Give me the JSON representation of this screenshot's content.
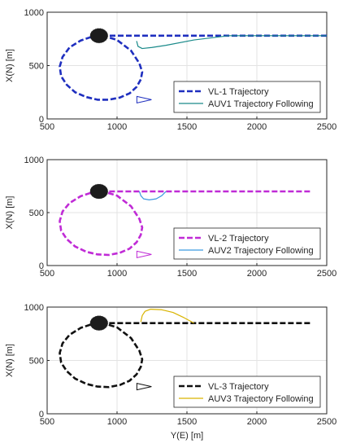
{
  "figure": {
    "panels": [
      {
        "id": "vl1",
        "xlabel": "",
        "ylabel": "X(N) [m]",
        "xlim": [
          500,
          2500
        ],
        "ylim": [
          0,
          1000
        ],
        "xticks": [
          "500",
          "1000",
          "1500",
          "2000",
          "2500"
        ],
        "yticks": [
          "0",
          "500",
          "1000"
        ],
        "leader_color": "#1f2fbf",
        "follower_color": "#1a8a8a",
        "legend": [
          "VL-1 Trajectory",
          "AUV1 Trajectory Following"
        ]
      },
      {
        "id": "vl2",
        "xlabel": "",
        "ylabel": "X(N) [m]",
        "xlim": [
          500,
          2500
        ],
        "ylim": [
          0,
          1000
        ],
        "xticks": [
          "500",
          "1000",
          "1500",
          "2000",
          "2500"
        ],
        "yticks": [
          "0",
          "500",
          "1000"
        ],
        "leader_color": "#c02bd6",
        "follower_color": "#3a9ae0",
        "legend": [
          "VL-2 Trajectory",
          "AUV2 Trajectory Following"
        ]
      },
      {
        "id": "vl3",
        "xlabel": "Y(E) [m]",
        "ylabel": "X(N) [m]",
        "xlim": [
          500,
          2500
        ],
        "ylim": [
          0,
          1000
        ],
        "xticks": [
          "500",
          "1000",
          "1500",
          "2000",
          "2500"
        ],
        "yticks": [
          "0",
          "500",
          "1000"
        ],
        "leader_color": "#111111",
        "follower_color": "#d9b400",
        "legend": [
          "VL-3 Trajectory",
          "AUV3 Trajectory Following"
        ]
      }
    ]
  },
  "chart_data": [
    {
      "type": "line",
      "xlabel": "",
      "ylabel": "X(N) [m]",
      "xlim": [
        500,
        2500
      ],
      "ylim": [
        0,
        1000
      ],
      "grid": true,
      "legend_position": "bottom-right",
      "series": [
        {
          "name": "VL-1 Trajectory",
          "style": "dashed",
          "color": "#1f2fbf",
          "x": [
            2500,
            2200,
            1900,
            1600,
            1300,
            1100,
            900,
            820,
            740,
            660,
            610,
            590,
            600,
            640,
            700,
            780,
            860,
            940,
            1020,
            1090,
            1140,
            1170,
            1180,
            1160,
            1100,
            1000,
            900
          ],
          "y": [
            780,
            780,
            780,
            780,
            780,
            780,
            780,
            770,
            735,
            670,
            580,
            490,
            400,
            320,
            250,
            205,
            180,
            180,
            200,
            240,
            300,
            370,
            440,
            520,
            640,
            740,
            780
          ]
        },
        {
          "name": "AUV1 Trajectory Following",
          "style": "solid",
          "color": "#1a8a8a",
          "x": [
            2500,
            2000,
            1800,
            1550,
            1350,
            1250,
            1180,
            1150,
            1140
          ],
          "y": [
            780,
            780,
            780,
            740,
            690,
            670,
            660,
            680,
            730
          ]
        }
      ]
    },
    {
      "type": "line",
      "xlabel": "",
      "ylabel": "X(N) [m]",
      "xlim": [
        500,
        2500
      ],
      "ylim": [
        0,
        1000
      ],
      "grid": true,
      "legend_position": "bottom-right",
      "series": [
        {
          "name": "VL-2 Trajectory",
          "style": "dashed",
          "color": "#c02bd6",
          "x": [
            2380,
            2100,
            1800,
            1500,
            1250,
            1100,
            900,
            820,
            740,
            660,
            610,
            590,
            600,
            640,
            700,
            780,
            860,
            940,
            1020,
            1090,
            1140,
            1170,
            1180,
            1160,
            1100,
            1000,
            900
          ],
          "y": [
            700,
            700,
            700,
            700,
            700,
            700,
            700,
            690,
            655,
            590,
            510,
            420,
            330,
            250,
            180,
            130,
            105,
            100,
            120,
            160,
            220,
            290,
            360,
            440,
            560,
            660,
            700
          ]
        },
        {
          "name": "AUV2 Trajectory Following",
          "style": "solid",
          "color": "#3a9ae0",
          "x": [
            1350,
            1320,
            1280,
            1230,
            1190,
            1170,
            1160
          ],
          "y": [
            700,
            660,
            630,
            620,
            630,
            660,
            700
          ]
        }
      ]
    },
    {
      "type": "line",
      "xlabel": "Y(E) [m]",
      "ylabel": "X(N) [m]",
      "xlim": [
        500,
        2500
      ],
      "ylim": [
        0,
        1000
      ],
      "grid": true,
      "legend_position": "bottom-right",
      "series": [
        {
          "name": "VL-3 Trajectory",
          "style": "dashed",
          "color": "#111111",
          "x": [
            2380,
            2100,
            1800,
            1500,
            1250,
            1100,
            900,
            820,
            740,
            660,
            610,
            590,
            600,
            640,
            700,
            780,
            860,
            940,
            1020,
            1090,
            1140,
            1170,
            1180,
            1160,
            1100,
            1000,
            900
          ],
          "y": [
            850,
            850,
            850,
            850,
            850,
            850,
            850,
            840,
            805,
            740,
            660,
            570,
            480,
            400,
            330,
            280,
            255,
            250,
            270,
            310,
            370,
            440,
            510,
            590,
            710,
            810,
            850
          ]
        },
        {
          "name": "AUV3 Trajectory Following",
          "style": "solid",
          "color": "#d9b400",
          "x": [
            1550,
            1480,
            1400,
            1320,
            1240,
            1200,
            1180,
            1170
          ],
          "y": [
            850,
            900,
            950,
            975,
            980,
            960,
            920,
            860
          ]
        }
      ]
    }
  ]
}
